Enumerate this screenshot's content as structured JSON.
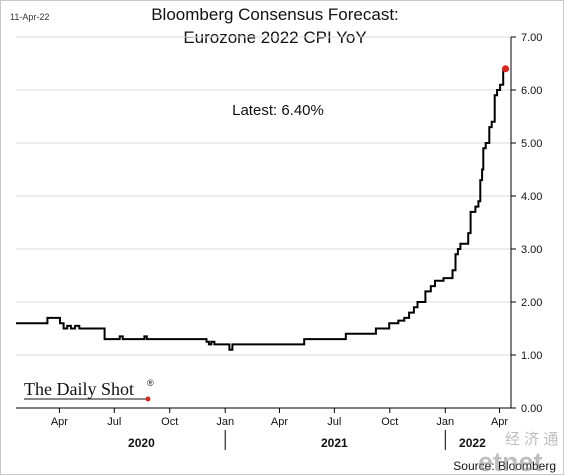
{
  "chart_data": {
    "type": "line",
    "date_stamp": "11-Apr-22",
    "title_lines": [
      "Bloomberg Consensus Forecast:",
      "Eurozone 2022 CPI YoY"
    ],
    "annotation": "Latest:  6.40%",
    "ylim": [
      0,
      7
    ],
    "y_ticks": [
      "0.00",
      "1.00",
      "2.00",
      "3.00",
      "4.00",
      "5.00",
      "6.00",
      "7.00"
    ],
    "x_month_ticks": [
      {
        "label": "Apr",
        "date": "2020-04-01"
      },
      {
        "label": "Jul",
        "date": "2020-07-01"
      },
      {
        "label": "Oct",
        "date": "2020-10-01"
      },
      {
        "label": "Jan",
        "date": "2021-01-01"
      },
      {
        "label": "Apr",
        "date": "2021-04-01"
      },
      {
        "label": "Jul",
        "date": "2021-07-01"
      },
      {
        "label": "Oct",
        "date": "2021-10-01"
      },
      {
        "label": "Jan",
        "date": "2022-01-01"
      },
      {
        "label": "Apr",
        "date": "2022-04-01"
      }
    ],
    "x_year_labels": [
      {
        "label": "2020",
        "date": "2020-08-15"
      },
      {
        "label": "2021",
        "date": "2021-07-01"
      },
      {
        "label": "2022",
        "date": "2022-02-15"
      }
    ],
    "x_year_dividers": [
      "2021-01-01",
      "2022-01-01"
    ],
    "x_range": [
      "2020-01-20",
      "2022-04-20"
    ],
    "series": [
      {
        "color": "#000000",
        "step": true,
        "points": [
          [
            "2020-01-20",
            1.6
          ],
          [
            "2020-03-12",
            1.7
          ],
          [
            "2020-04-02",
            1.6
          ],
          [
            "2020-04-08",
            1.5
          ],
          [
            "2020-04-14",
            1.55
          ],
          [
            "2020-04-20",
            1.5
          ],
          [
            "2020-04-27",
            1.55
          ],
          [
            "2020-05-04",
            1.5
          ],
          [
            "2020-06-15",
            1.3
          ],
          [
            "2020-07-10",
            1.35
          ],
          [
            "2020-07-15",
            1.3
          ],
          [
            "2020-08-20",
            1.35
          ],
          [
            "2020-08-24",
            1.3
          ],
          [
            "2020-12-01",
            1.25
          ],
          [
            "2020-12-05",
            1.2
          ],
          [
            "2020-12-09",
            1.25
          ],
          [
            "2020-12-14",
            1.2
          ],
          [
            "2021-01-08",
            1.1
          ],
          [
            "2021-01-13",
            1.2
          ],
          [
            "2021-02-10",
            1.2
          ],
          [
            "2021-05-12",
            1.3
          ],
          [
            "2021-07-20",
            1.4
          ],
          [
            "2021-09-08",
            1.5
          ],
          [
            "2021-09-30",
            1.6
          ],
          [
            "2021-10-15",
            1.65
          ],
          [
            "2021-10-25",
            1.7
          ],
          [
            "2021-11-02",
            1.8
          ],
          [
            "2021-11-10",
            1.9
          ],
          [
            "2021-11-16",
            2.0
          ],
          [
            "2021-11-29",
            2.2
          ],
          [
            "2021-12-08",
            2.3
          ],
          [
            "2021-12-15",
            2.4
          ],
          [
            "2021-12-29",
            2.45
          ],
          [
            "2022-01-13",
            2.6
          ],
          [
            "2022-01-18",
            2.9
          ],
          [
            "2022-01-22",
            3.0
          ],
          [
            "2022-01-26",
            3.1
          ],
          [
            "2022-02-08",
            3.3
          ],
          [
            "2022-02-12",
            3.7
          ],
          [
            "2022-02-20",
            3.8
          ],
          [
            "2022-02-25",
            3.9
          ],
          [
            "2022-02-28",
            4.3
          ],
          [
            "2022-03-03",
            4.5
          ],
          [
            "2022-03-05",
            4.9
          ],
          [
            "2022-03-09",
            5.0
          ],
          [
            "2022-03-15",
            5.3
          ],
          [
            "2022-03-19",
            5.4
          ],
          [
            "2022-03-24",
            5.9
          ],
          [
            "2022-03-28",
            6.0
          ],
          [
            "2022-04-02",
            6.1
          ],
          [
            "2022-04-07",
            6.4
          ],
          [
            "2022-04-11",
            6.4
          ]
        ]
      }
    ],
    "latest_marker": {
      "date": "2022-04-11",
      "value": 6.4,
      "color": "#e0201c"
    }
  },
  "footer": {
    "logo_text": "The Daily Shot",
    "logo_mark": "®",
    "source": "Source: Bloomberg",
    "watermark_top": "经 济 通",
    "watermark_bottom": "etnet"
  }
}
